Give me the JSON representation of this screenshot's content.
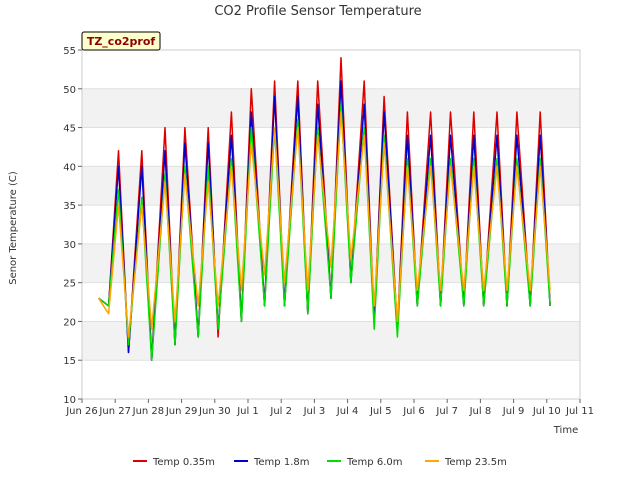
{
  "chart_data": {
    "type": "line",
    "title": "CO2 Profile Sensor Temperature",
    "xlabel": "Time",
    "ylabel": "Senor Temperature (C)",
    "tag": "TZ_co2prof",
    "xlim": [
      0,
      15
    ],
    "ylim": [
      10,
      55
    ],
    "yticks": [
      10,
      15,
      20,
      25,
      30,
      35,
      40,
      45,
      50,
      55
    ],
    "xticks": [
      {
        "x": 0,
        "label": "Jun 26"
      },
      {
        "x": 1,
        "label": "Jun 27"
      },
      {
        "x": 2,
        "label": "Jun 28"
      },
      {
        "x": 3,
        "label": "Jun 29"
      },
      {
        "x": 4,
        "label": "Jun 30"
      },
      {
        "x": 5,
        "label": "Jul 1"
      },
      {
        "x": 6,
        "label": "Jul 2"
      },
      {
        "x": 7,
        "label": "Jul 3"
      },
      {
        "x": 8,
        "label": "Jul 4"
      },
      {
        "x": 9,
        "label": "Jul 5"
      },
      {
        "x": 10,
        "label": "Jul 6"
      },
      {
        "x": 11,
        "label": "Jul 7"
      },
      {
        "x": 12,
        "label": "Jul 8"
      },
      {
        "x": 13,
        "label": "Jul 9"
      },
      {
        "x": 14,
        "label": "Jul 10"
      },
      {
        "x": 15,
        "label": "Jul 11"
      }
    ],
    "grid": "horizontal bands",
    "legend_position": "bottom",
    "series": [
      {
        "name": "Temp 0.35m",
        "color": "#dd0000",
        "x": [
          0.5,
          0.8,
          1.1,
          1.4,
          1.8,
          2.1,
          2.5,
          2.8,
          3.1,
          3.5,
          3.8,
          4.1,
          4.5,
          4.8,
          5.1,
          5.5,
          5.8,
          6.1,
          6.5,
          6.8,
          7.1,
          7.5,
          7.8,
          8.1,
          8.5,
          8.8,
          9.1,
          9.5,
          9.8,
          10.1,
          10.5,
          10.8,
          11.1,
          11.5,
          11.8,
          12.1,
          12.5,
          12.8,
          13.1,
          13.5,
          13.8,
          14.1
        ],
        "y": [
          23,
          22,
          42,
          16,
          42,
          15,
          45,
          17,
          45,
          18,
          45,
          18,
          47,
          20,
          50,
          22,
          51,
          22,
          51,
          21,
          51,
          23,
          54,
          25,
          51,
          20,
          49,
          19,
          47,
          22,
          47,
          22,
          47,
          22,
          47,
          22,
          47,
          22,
          47,
          22,
          47,
          22
        ]
      },
      {
        "name": "Temp 1.8m",
        "color": "#0000cc",
        "x": [
          0.5,
          0.8,
          1.1,
          1.4,
          1.8,
          2.1,
          2.5,
          2.8,
          3.1,
          3.5,
          3.8,
          4.1,
          4.5,
          4.8,
          5.1,
          5.5,
          5.8,
          6.1,
          6.5,
          6.8,
          7.1,
          7.5,
          7.8,
          8.1,
          8.5,
          8.8,
          9.1,
          9.5,
          9.8,
          10.1,
          10.5,
          10.8,
          11.1,
          11.5,
          11.8,
          12.1,
          12.5,
          12.8,
          13.1,
          13.5,
          13.8,
          14.1
        ],
        "y": [
          23,
          22,
          40,
          16,
          40,
          15,
          42,
          17,
          43,
          18,
          43,
          19,
          44,
          20,
          47,
          22,
          49,
          22,
          49,
          21,
          48,
          23,
          51,
          25,
          48,
          20,
          47,
          19,
          44,
          22,
          44,
          22,
          44,
          22,
          44,
          22,
          44,
          22,
          44,
          22,
          44,
          22
        ]
      },
      {
        "name": "Temp 6.0m",
        "color": "#00dd00",
        "x": [
          0.5,
          0.8,
          1.1,
          1.4,
          1.8,
          2.1,
          2.5,
          2.8,
          3.1,
          3.5,
          3.8,
          4.1,
          4.5,
          4.8,
          5.1,
          5.5,
          5.8,
          6.1,
          6.5,
          6.8,
          7.1,
          7.5,
          7.8,
          8.1,
          8.5,
          8.8,
          9.1,
          9.5,
          9.8,
          10.1,
          10.5,
          10.8,
          11.1,
          11.5,
          11.8,
          12.1,
          12.5,
          12.8,
          13.1,
          13.5,
          13.8,
          14.1
        ],
        "y": [
          23,
          22,
          37,
          17,
          36,
          15,
          39,
          17,
          40,
          18,
          40,
          19,
          41,
          20,
          45,
          22,
          45,
          22,
          46,
          21,
          45,
          23,
          48,
          25,
          45,
          19,
          44,
          18,
          41,
          22,
          41,
          22,
          41,
          22,
          41,
          22,
          41,
          22,
          41,
          22,
          41,
          22
        ]
      },
      {
        "name": "Temp 23.5m",
        "color": "#ffa500",
        "x": [
          0.5,
          0.8,
          1.1,
          1.4,
          1.8,
          2.1,
          2.5,
          2.8,
          3.1,
          3.5,
          3.8,
          4.1,
          4.5,
          4.8,
          5.1,
          5.5,
          5.8,
          6.1,
          6.5,
          6.8,
          7.1,
          7.5,
          7.8,
          8.1,
          8.5,
          8.8,
          9.1,
          9.5,
          9.8,
          10.1,
          10.5,
          10.8,
          11.1,
          11.5,
          11.8,
          12.1,
          12.5,
          12.8,
          13.1,
          13.5,
          13.8,
          14.1
        ],
        "y": [
          23,
          21,
          35,
          18,
          35,
          19,
          38,
          20,
          39,
          22,
          38,
          22,
          40,
          24,
          43,
          26,
          45,
          25,
          45,
          24,
          44,
          27,
          47,
          28,
          44,
          22,
          43,
          20,
          40,
          24,
          40,
          24,
          40,
          24,
          40,
          24,
          40,
          24,
          40,
          24,
          40,
          24
        ]
      }
    ]
  }
}
